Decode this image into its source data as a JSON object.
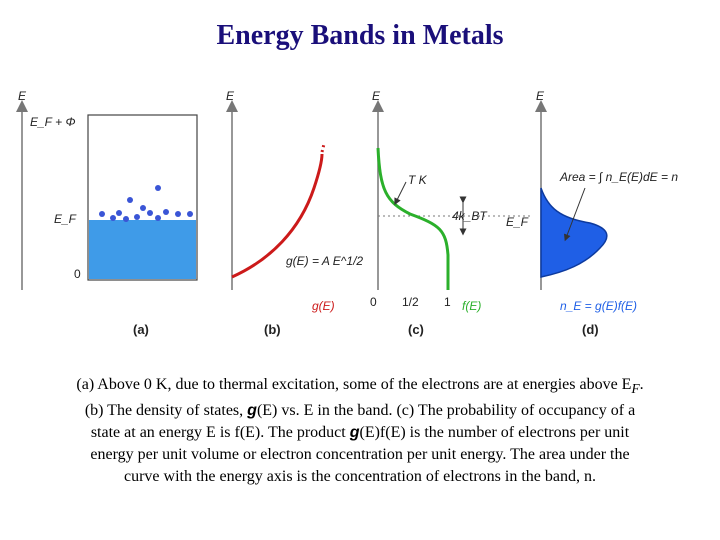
{
  "title": "Energy Bands in Metals",
  "colors": {
    "title": "#1a0f7a",
    "band_fill": "#3f9be8",
    "electron": "#3a55d6",
    "dos_curve": "#cc1a1a",
    "fermi_curve": "#2bb02b",
    "product_fill": "#1f5fe6",
    "axis": "#777777"
  },
  "panel_a": {
    "axis_label": "E",
    "ef_phi_label": "E_F + Φ",
    "ef_label": "E_F",
    "zero_label": "0",
    "panel_label": "(a)"
  },
  "panel_b": {
    "axis_label": "E",
    "curve_label": "g(E) = A E^1/2",
    "x_label": "g(E)",
    "panel_label": "(b)"
  },
  "panel_c": {
    "axis_label": "E",
    "temp_label": "T K",
    "width_label": "4k_BT",
    "ef_label": "E_F",
    "tick_0": "0",
    "tick_half": "1/2",
    "tick_1": "1",
    "x_label": "f(E)",
    "panel_label": "(c)"
  },
  "panel_d": {
    "axis_label": "E",
    "area_label": "Area = ∫ n_E(E)dE = n",
    "x_label": "n_E = g(E)f(E)",
    "panel_label": "(d)"
  },
  "caption": {
    "line1": "(a) Above 0 K, due to thermal excitation, some of the electrons are at energies above E",
    "line1_sub": "F",
    "line1_end": ".",
    "line2_a": "(b) The density of states, ",
    "line2_g": "g",
    "line2_b": "(E) vs. E in the band. (c) The probability of occupancy of a",
    "line3": "state at an energy E is f(E). The product ",
    "line3_g": "g",
    "line3_b": "(E)f(E) is the number of electrons per unit",
    "line4": "energy per unit volume or electron concentration per unit energy. The area under the",
    "line5": "curve with the energy axis is the concentration of electrons in the band, n."
  }
}
